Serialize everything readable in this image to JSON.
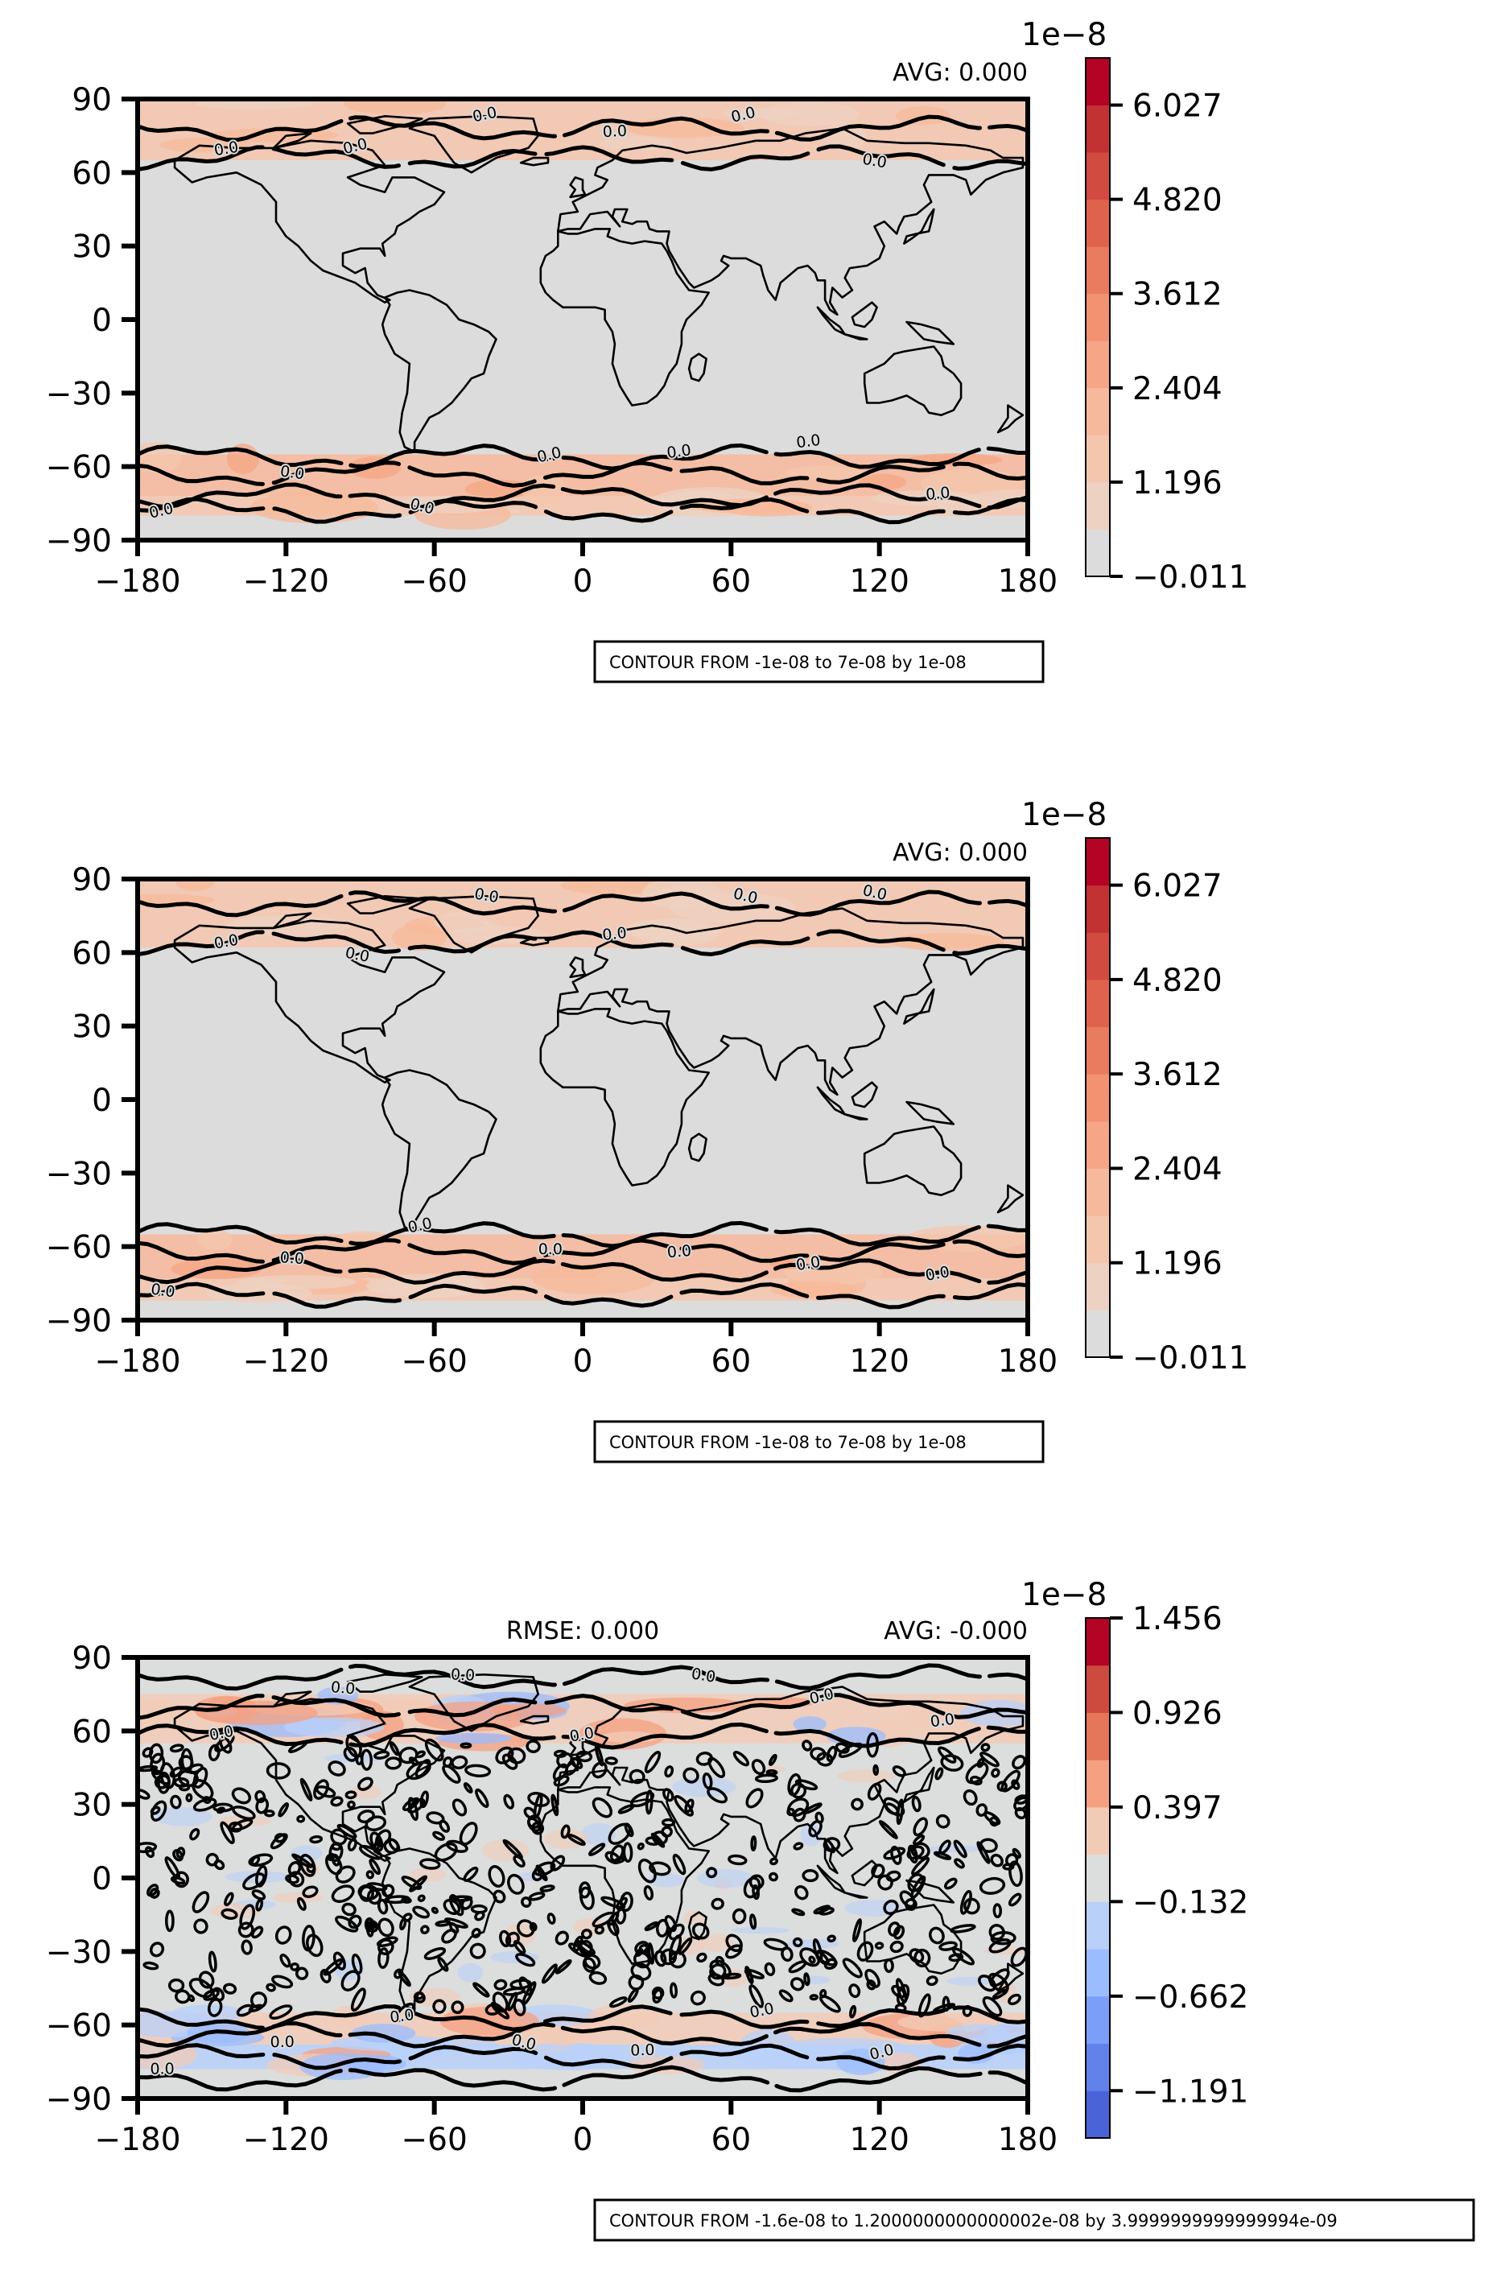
{
  "chart_data": [
    {
      "type": "heatmap",
      "panel": "top",
      "title": "",
      "annotations": {
        "left": "",
        "right": "AVG: 0.000"
      },
      "xlabel": "",
      "ylabel": "",
      "xlim": [
        -180,
        180
      ],
      "ylim": [
        -90,
        90
      ],
      "x_ticks": [
        "−180",
        "−120",
        "−60",
        "0",
        "60",
        "120",
        "180"
      ],
      "y_ticks": [
        "90",
        "60",
        "30",
        "0",
        "−30",
        "−60",
        "−90"
      ],
      "contour_label": "0.0",
      "contour_labels_count": 13,
      "colorbar": {
        "exponent": "1e−8",
        "ticks": [
          "−0.011",
          "1.196",
          "2.404",
          "3.612",
          "4.820",
          "6.027"
        ],
        "colors": [
          "#dddcdc",
          "#edd1c2",
          "#f4c6ae",
          "#f7b99b",
          "#f6a586",
          "#f39271",
          "#e97b5f",
          "#df634c",
          "#d24b40",
          "#c33233",
          "#b40426"
        ]
      },
      "contour_note": "CONTOUR FROM -1e-08 to 7e-08 by 1e-08",
      "field": {
        "bands": [
          {
            "lat": [
              65,
              90
            ],
            "level": 2
          },
          {
            "lat": [
              -72,
              -55
            ],
            "level": 3
          },
          {
            "lat": [
              -80,
              -72
            ],
            "level": 2
          }
        ]
      }
    },
    {
      "type": "heatmap",
      "panel": "middle",
      "title": "",
      "annotations": {
        "left": "",
        "right": "AVG: 0.000"
      },
      "xlabel": "",
      "ylabel": "",
      "xlim": [
        -180,
        180
      ],
      "ylim": [
        -90,
        90
      ],
      "x_ticks": [
        "−180",
        "−120",
        "−60",
        "0",
        "60",
        "120",
        "180"
      ],
      "y_ticks": [
        "90",
        "60",
        "30",
        "0",
        "−30",
        "−60",
        "−90"
      ],
      "contour_label": "0.0",
      "contour_labels_count": 13,
      "colorbar": {
        "exponent": "1e−8",
        "ticks": [
          "−0.011",
          "1.196",
          "2.404",
          "3.612",
          "4.820",
          "6.027"
        ],
        "colors": [
          "#dddcdc",
          "#edd1c2",
          "#f4c6ae",
          "#f7b99b",
          "#f6a586",
          "#f39271",
          "#e97b5f",
          "#df634c",
          "#d24b40",
          "#c33233",
          "#b40426"
        ]
      },
      "contour_note": "CONTOUR FROM -1e-08 to 7e-08 by 1e-08",
      "field": {
        "bands": [
          {
            "lat": [
              62,
              90
            ],
            "level": 2
          },
          {
            "lat": [
              -73,
              -55
            ],
            "level": 3
          },
          {
            "lat": [
              -82,
              -73
            ],
            "level": 2
          }
        ]
      }
    },
    {
      "type": "heatmap",
      "panel": "bottom",
      "title": "",
      "annotations": {
        "left": "RMSE: 0.000",
        "right": "AVG: -0.000"
      },
      "xlabel": "",
      "ylabel": "",
      "xlim": [
        -180,
        180
      ],
      "ylim": [
        -90,
        90
      ],
      "x_ticks": [
        "−180",
        "−120",
        "−60",
        "0",
        "60",
        "120",
        "180"
      ],
      "y_ticks": [
        "90",
        "60",
        "30",
        "0",
        "−30",
        "−60",
        "−90"
      ],
      "contour_label": "0.0",
      "contour_labels_count": 14,
      "colorbar": {
        "exponent": "1e−8",
        "ticks": [
          "−1.191",
          "−0.662",
          "−0.132",
          "0.397",
          "0.926",
          "1.456"
        ],
        "colors": [
          "#4a64d8",
          "#6282ea",
          "#7b9ff9",
          "#9bbcff",
          "#b9d0f9",
          "#dcdddd",
          "#f2cbb7",
          "#f5a081",
          "#e4765a",
          "#cc4a3e",
          "#b40426"
        ]
      },
      "contour_note": "CONTOUR FROM -1.6e-08 to 1.2000000000000002e-08 by 3.9999999999999994e-09",
      "field": {
        "bands": [
          {
            "lat": [
              55,
              75
            ],
            "level": 6
          },
          {
            "lat": [
              -68,
              -55
            ],
            "level": 6
          },
          {
            "lat": [
              -78,
              -68
            ],
            "level": 4
          }
        ]
      }
    }
  ]
}
